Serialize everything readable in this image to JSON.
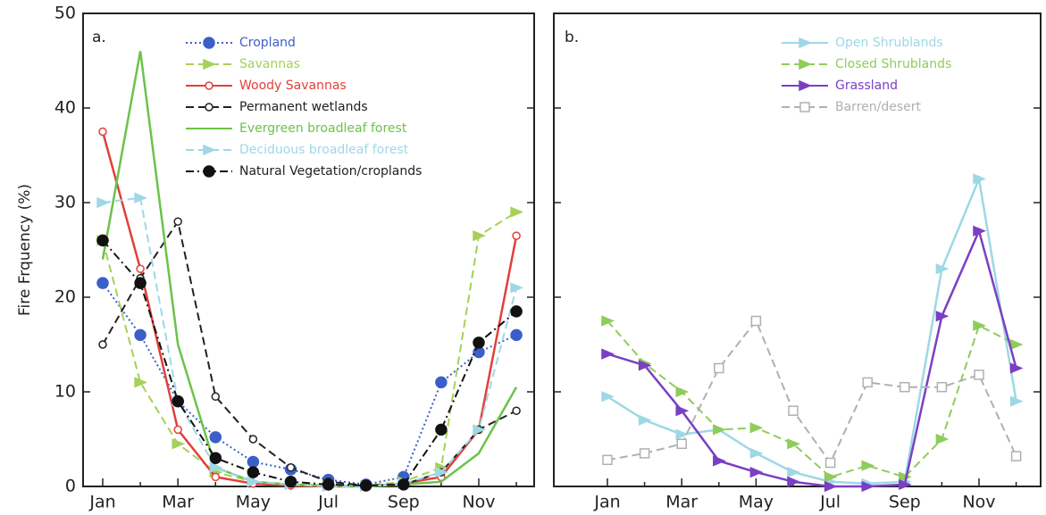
{
  "chart_data": [
    {
      "type": "line",
      "title": "a.",
      "y_label": "Fire Frquency  (%)",
      "categories": [
        "Jan",
        null,
        "Mar",
        null,
        "May",
        null,
        "Jul",
        null,
        "Sep",
        null,
        "Nov",
        null
      ],
      "ylim": [
        0,
        50
      ],
      "yticks": [
        0,
        10,
        20,
        30,
        40,
        50
      ],
      "legend": "top",
      "series": [
        {
          "name": "Cropland",
          "color": "#3b5fc9",
          "dash": "dotted",
          "marker": "circle",
          "values": [
            21.5,
            16,
            9,
            5.2,
            2.6,
            1.8,
            0.7,
            0.2,
            1,
            11,
            14.2,
            16
          ]
        },
        {
          "name": "Savannas",
          "color": "#a6d05a",
          "dash": "dashed",
          "marker": "triangle",
          "values": [
            26,
            11,
            4.5,
            1.5,
            0.5,
            0.2,
            0.1,
            0.1,
            0.5,
            2,
            26.5,
            29
          ]
        },
        {
          "name": "Woody Savannas",
          "color": "#e0403a",
          "dash": "solid",
          "marker": "open-circle",
          "values": [
            37.5,
            23,
            6,
            1,
            0.3,
            0.1,
            0,
            0,
            0.3,
            1,
            6,
            26.5
          ]
        },
        {
          "name": "Permanent wetlands",
          "color": "#222222",
          "dash": "dashed",
          "marker": "open-circle",
          "values": [
            15,
            22,
            28,
            9.5,
            5,
            2,
            0.5,
            0.1,
            0.2,
            1.5,
            6,
            8
          ]
        },
        {
          "name": "Evergreen broadleaf forest",
          "color": "#6cc24a",
          "dash": "solid",
          "marker": "none",
          "values": [
            24,
            46,
            15,
            2,
            0.5,
            0.2,
            0.1,
            0,
            0.2,
            0.5,
            3.5,
            10.5
          ]
        },
        {
          "name": "Deciduous broadleaf forest",
          "color": "#9ed8e6",
          "dash": "dashed",
          "marker": "triangle",
          "values": [
            30,
            30.5,
            9,
            2,
            0.5,
            0.2,
            0,
            0,
            0.3,
            1.5,
            6,
            21
          ]
        },
        {
          "name": "Natural Vegetation/croplands",
          "color": "#111111",
          "dash": "dashdot",
          "marker": "circle",
          "values": [
            26,
            21.5,
            9,
            3,
            1.5,
            0.5,
            0.2,
            0.1,
            0.2,
            6,
            15.2,
            18.5
          ]
        }
      ]
    },
    {
      "type": "line",
      "title": "b.",
      "categories": [
        "Jan",
        null,
        "Mar",
        null,
        "May",
        null,
        "Jul",
        null,
        "Sep",
        null,
        "Nov",
        null
      ],
      "ylim": [
        0,
        50
      ],
      "yticks": [
        0,
        10,
        20,
        30,
        40,
        50
      ],
      "legend": "top right",
      "series": [
        {
          "name": "Open Shrublands",
          "color": "#9ed8e6",
          "dash": "solid",
          "marker": "triangle",
          "values": [
            9.5,
            7,
            5.5,
            6,
            3.5,
            1.5,
            0.5,
            0.3,
            0.5,
            23,
            32.5,
            9
          ]
        },
        {
          "name": "Closed Shrublands",
          "color": "#8fcc5a",
          "dash": "dashed",
          "marker": "triangle",
          "values": [
            17.5,
            13,
            10,
            6,
            6.2,
            4.5,
            1,
            2.2,
            1,
            5,
            17,
            15
          ]
        },
        {
          "name": "Grassland",
          "color": "#7b3fc4",
          "dash": "solid",
          "marker": "triangle",
          "values": [
            14,
            12.8,
            8,
            2.7,
            1.5,
            0.5,
            0,
            0,
            0.2,
            18,
            27,
            12.5
          ]
        },
        {
          "name": "Barren/desert",
          "color": "#b0b0b0",
          "dash": "dashed",
          "marker": "square",
          "values": [
            2.8,
            3.5,
            4.5,
            12.5,
            17.5,
            8,
            2.5,
            11,
            10.5,
            10.5,
            11.8,
            3.2
          ]
        }
      ]
    }
  ]
}
